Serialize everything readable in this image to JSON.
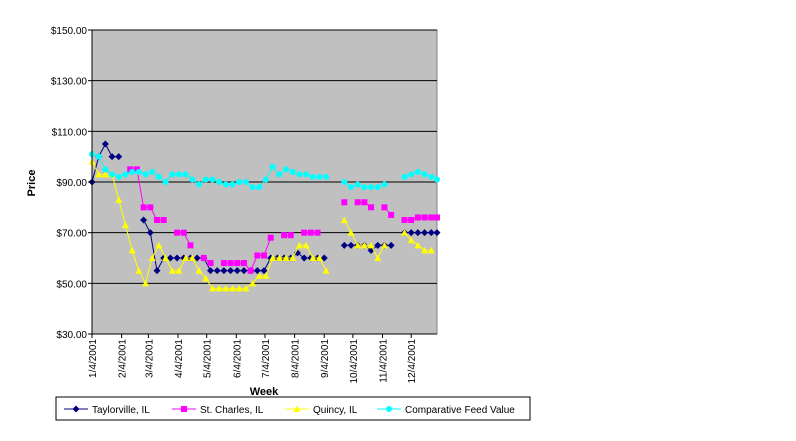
{
  "chart_data": {
    "type": "line",
    "title": "",
    "xlabel": "Week",
    "ylabel": "Price",
    "ylim": [
      30,
      150
    ],
    "yticks": [
      "$30.00",
      "$50.00",
      "$70.00",
      "$90.00",
      "$110.00",
      "$130.00",
      "$150.00"
    ],
    "yticks_values": [
      30,
      50,
      70,
      90,
      110,
      130,
      150
    ],
    "xlim": [
      "2001-01-04",
      "2001-12-31"
    ],
    "xticks": [
      "1/4/2001",
      "2/4/2001",
      "3/4/2001",
      "4/4/2001",
      "5/4/2001",
      "6/4/2001",
      "7/4/2001",
      "8/4/2001",
      "9/4/2001",
      "10/4/2001",
      "11/4/2001",
      "12/4/2001"
    ],
    "xticks_dates": [
      "2001-01-04",
      "2001-02-04",
      "2001-03-04",
      "2001-04-04",
      "2001-05-04",
      "2001-06-04",
      "2001-07-04",
      "2001-08-04",
      "2001-09-04",
      "2001-10-04",
      "2001-11-04",
      "2001-12-04"
    ],
    "grid": true,
    "legend_position": "bottom",
    "colors": {
      "plot_bg": "#c0c0c0",
      "grid": "#000000"
    },
    "series": [
      {
        "name": "Taylorville, IL",
        "color": "#000080",
        "marker": "diamond",
        "segments": [
          [
            [
              "2001-01-04",
              90
            ],
            [
              "2001-01-11",
              100
            ],
            [
              "2001-01-18",
              105
            ],
            [
              "2001-01-25",
              100
            ],
            [
              "2001-02-01",
              100
            ]
          ],
          [
            [
              "2001-02-27",
              75
            ],
            [
              "2001-03-06",
              70
            ],
            [
              "2001-03-13",
              55
            ],
            [
              "2001-03-20",
              60
            ],
            [
              "2001-03-27",
              60
            ],
            [
              "2001-04-03",
              60
            ],
            [
              "2001-04-10",
              60
            ],
            [
              "2001-04-17",
              60
            ],
            [
              "2001-04-24",
              60
            ],
            [
              "2001-05-01",
              60
            ],
            [
              "2001-05-08",
              55
            ],
            [
              "2001-05-15",
              55
            ],
            [
              "2001-05-22",
              55
            ],
            [
              "2001-05-29",
              55
            ],
            [
              "2001-06-05",
              55
            ],
            [
              "2001-06-12",
              55
            ],
            [
              "2001-06-19",
              55
            ],
            [
              "2001-06-26",
              55
            ],
            [
              "2001-07-03",
              55
            ],
            [
              "2001-07-10",
              60
            ],
            [
              "2001-07-17",
              60
            ],
            [
              "2001-07-24",
              60
            ],
            [
              "2001-07-31",
              60
            ],
            [
              "2001-08-07",
              62
            ],
            [
              "2001-08-14",
              60
            ],
            [
              "2001-08-21",
              60
            ],
            [
              "2001-08-28",
              60
            ],
            [
              "2001-09-04",
              60
            ]
          ],
          [
            [
              "2001-09-25",
              65
            ],
            [
              "2001-10-02",
              65
            ],
            [
              "2001-10-09",
              65
            ],
            [
              "2001-10-16",
              65
            ],
            [
              "2001-10-23",
              63
            ],
            [
              "2001-10-30",
              65
            ],
            [
              "2001-11-06",
              65
            ],
            [
              "2001-11-13",
              65
            ]
          ],
          [
            [
              "2001-11-27",
              70
            ],
            [
              "2001-12-04",
              70
            ],
            [
              "2001-12-11",
              70
            ],
            [
              "2001-12-18",
              70
            ],
            [
              "2001-12-25",
              70
            ],
            [
              "2001-12-31",
              70
            ]
          ]
        ]
      },
      {
        "name": "St. Charles, IL",
        "color": "#ff00ff",
        "marker": "square",
        "segments": [
          [
            [
              "2001-02-13",
              95
            ],
            [
              "2001-02-20",
              95
            ],
            [
              "2001-02-27",
              80
            ],
            [
              "2001-03-06",
              80
            ],
            [
              "2001-03-13",
              75
            ],
            [
              "2001-03-20",
              75
            ]
          ],
          [
            [
              "2001-04-03",
              70
            ],
            [
              "2001-04-10",
              70
            ],
            [
              "2001-04-17",
              65
            ]
          ],
          [
            [
              "2001-05-01",
              60
            ],
            [
              "2001-05-08",
              58
            ]
          ],
          [
            [
              "2001-05-22",
              58
            ],
            [
              "2001-05-29",
              58
            ],
            [
              "2001-06-05",
              58
            ],
            [
              "2001-06-12",
              58
            ],
            [
              "2001-06-19",
              55
            ],
            [
              "2001-06-26",
              61
            ],
            [
              "2001-07-03",
              61
            ],
            [
              "2001-07-10",
              68
            ]
          ],
          [
            [
              "2001-07-24",
              69
            ],
            [
              "2001-07-31",
              69
            ]
          ],
          [
            [
              "2001-08-14",
              70
            ],
            [
              "2001-08-21",
              70
            ],
            [
              "2001-08-28",
              70
            ]
          ],
          [
            [
              "2001-09-25",
              82
            ]
          ],
          [
            [
              "2001-10-09",
              82
            ],
            [
              "2001-10-16",
              82
            ],
            [
              "2001-10-23",
              80
            ]
          ],
          [
            [
              "2001-11-06",
              80
            ],
            [
              "2001-11-13",
              77
            ]
          ],
          [
            [
              "2001-11-27",
              75
            ],
            [
              "2001-12-04",
              75
            ],
            [
              "2001-12-11",
              76
            ],
            [
              "2001-12-18",
              76
            ],
            [
              "2001-12-25",
              76
            ],
            [
              "2001-12-31",
              76
            ]
          ]
        ]
      },
      {
        "name": "Quincy, IL",
        "color": "#ffff00",
        "marker": "triangle",
        "segments": [
          [
            [
              "2001-01-04",
              98
            ],
            [
              "2001-01-11",
              93
            ],
            [
              "2001-01-18",
              93
            ],
            [
              "2001-01-25",
              93
            ],
            [
              "2001-02-01",
              83
            ],
            [
              "2001-02-08",
              73
            ],
            [
              "2001-02-15",
              63
            ],
            [
              "2001-02-22",
              55
            ],
            [
              "2001-03-01",
              50
            ],
            [
              "2001-03-08",
              60
            ],
            [
              "2001-03-15",
              65
            ],
            [
              "2001-03-22",
              60
            ],
            [
              "2001-03-29",
              55
            ],
            [
              "2001-04-05",
              55
            ],
            [
              "2001-04-12",
              60
            ],
            [
              "2001-04-19",
              60
            ],
            [
              "2001-04-26",
              55
            ],
            [
              "2001-05-03",
              52
            ],
            [
              "2001-05-10",
              48
            ],
            [
              "2001-05-17",
              48
            ],
            [
              "2001-05-24",
              48
            ],
            [
              "2001-05-31",
              48
            ],
            [
              "2001-06-07",
              48
            ],
            [
              "2001-06-14",
              48
            ],
            [
              "2001-06-21",
              50
            ],
            [
              "2001-06-28",
              53
            ],
            [
              "2001-07-05",
              53
            ],
            [
              "2001-07-12",
              60
            ],
            [
              "2001-07-19",
              60
            ],
            [
              "2001-07-26",
              60
            ],
            [
              "2001-08-02",
              60
            ],
            [
              "2001-08-09",
              65
            ],
            [
              "2001-08-16",
              65
            ],
            [
              "2001-08-23",
              60
            ],
            [
              "2001-08-30",
              60
            ],
            [
              "2001-09-06",
              55
            ]
          ],
          [
            [
              "2001-09-25",
              75
            ],
            [
              "2001-10-02",
              70
            ],
            [
              "2001-10-09",
              65
            ],
            [
              "2001-10-16",
              65
            ],
            [
              "2001-10-23",
              65
            ],
            [
              "2001-10-30",
              60
            ],
            [
              "2001-11-06",
              65
            ]
          ],
          [
            [
              "2001-11-27",
              70
            ],
            [
              "2001-12-04",
              67
            ],
            [
              "2001-12-11",
              65
            ],
            [
              "2001-12-18",
              63
            ],
            [
              "2001-12-25",
              63
            ]
          ]
        ]
      },
      {
        "name": "Comparative Feed Value",
        "color": "#00ffff",
        "marker": "circle",
        "segments": [
          [
            [
              "2001-01-04",
              101
            ],
            [
              "2001-01-11",
              100
            ],
            [
              "2001-01-18",
              95
            ],
            [
              "2001-01-25",
              93
            ],
            [
              "2001-02-01",
              92
            ],
            [
              "2001-02-08",
              93
            ],
            [
              "2001-02-15",
              94
            ],
            [
              "2001-02-22",
              94
            ],
            [
              "2001-03-01",
              93
            ],
            [
              "2001-03-08",
              94
            ],
            [
              "2001-03-15",
              92
            ],
            [
              "2001-03-22",
              90
            ],
            [
              "2001-03-29",
              93
            ],
            [
              "2001-04-05",
              93
            ],
            [
              "2001-04-12",
              93
            ],
            [
              "2001-04-19",
              91
            ],
            [
              "2001-04-26",
              89
            ],
            [
              "2001-05-03",
              91
            ],
            [
              "2001-05-10",
              91
            ],
            [
              "2001-05-17",
              90
            ],
            [
              "2001-05-24",
              89
            ],
            [
              "2001-05-31",
              89
            ],
            [
              "2001-06-07",
              90
            ],
            [
              "2001-06-14",
              90
            ],
            [
              "2001-06-21",
              88
            ],
            [
              "2001-06-28",
              88
            ],
            [
              "2001-07-05",
              91
            ],
            [
              "2001-07-12",
              96
            ],
            [
              "2001-07-19",
              93
            ],
            [
              "2001-07-26",
              95
            ],
            [
              "2001-08-02",
              94
            ],
            [
              "2001-08-09",
              93
            ],
            [
              "2001-08-16",
              93
            ],
            [
              "2001-08-23",
              92
            ],
            [
              "2001-08-30",
              92
            ],
            [
              "2001-09-06",
              92
            ]
          ],
          [
            [
              "2001-09-25",
              90
            ],
            [
              "2001-10-02",
              88
            ],
            [
              "2001-10-09",
              89
            ],
            [
              "2001-10-16",
              88
            ],
            [
              "2001-10-23",
              88
            ],
            [
              "2001-10-30",
              88
            ],
            [
              "2001-11-06",
              89
            ]
          ],
          [
            [
              "2001-11-27",
              92
            ],
            [
              "2001-12-04",
              93
            ],
            [
              "2001-12-11",
              94
            ],
            [
              "2001-12-18",
              93
            ],
            [
              "2001-12-25",
              92
            ],
            [
              "2001-12-31",
              91
            ]
          ]
        ]
      }
    ]
  }
}
